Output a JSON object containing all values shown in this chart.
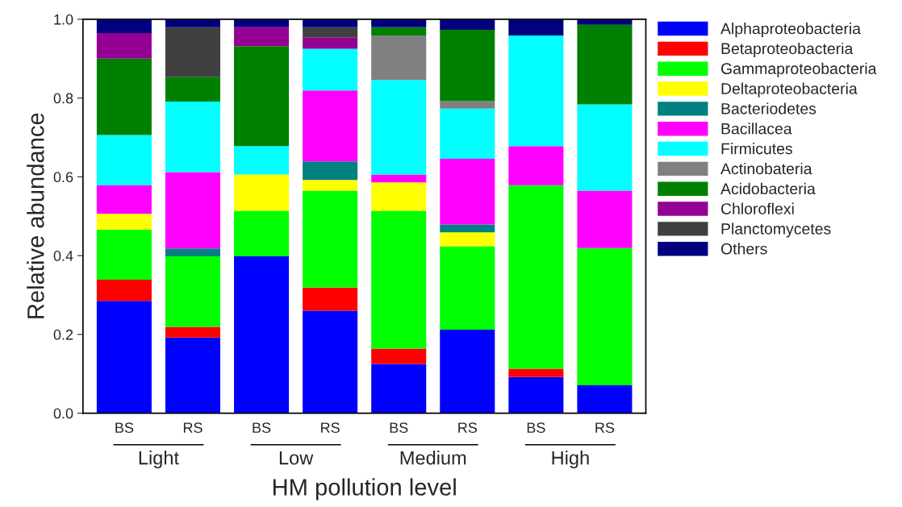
{
  "chart_data": {
    "type": "bar",
    "stacked": true,
    "xlabel": "HM pollution level",
    "ylabel": "Relative abundance",
    "categories": [
      "BS",
      "RS",
      "BS",
      "RS",
      "BS",
      "RS",
      "BS",
      "RS"
    ],
    "annotations": [
      "Light",
      "Low",
      "Medium",
      "High"
    ],
    "ylim": [
      0,
      1
    ],
    "yticks": [
      {
        "value": 0,
        "label": "0.0"
      },
      {
        "value": 0.2,
        "label": "0.2"
      },
      {
        "value": 0.4,
        "label": "0.4"
      },
      {
        "value": 0.6,
        "label": "0.6"
      },
      {
        "value": 0.8,
        "label": "0.8"
      },
      {
        "value": 1,
        "label": "1.0"
      }
    ],
    "grid": false,
    "legend": "right",
    "series": [
      {
        "name": "Alphaproteobacteria",
        "color": "#0000ff",
        "values": [
          0.285,
          0.192,
          0.398,
          0.26,
          0.125,
          0.212,
          0.092,
          0.071
        ]
      },
      {
        "name": "Betaproteobacteria",
        "color": "#ff0000",
        "values": [
          0.054,
          0.027,
          null,
          0.059,
          0.039,
          null,
          0.021,
          null
        ]
      },
      {
        "name": "Gammaproteobacteria",
        "color": "#00ff00",
        "values": [
          0.127,
          0.179,
          0.116,
          0.246,
          0.35,
          0.212,
          0.466,
          0.348
        ]
      },
      {
        "name": "Deltaproteobacteria",
        "color": "#ffff00",
        "values": [
          0.04,
          null,
          0.092,
          0.027,
          0.072,
          0.035,
          null,
          null
        ]
      },
      {
        "name": "Bacteriodetes",
        "color": "#008080",
        "values": [
          null,
          0.02,
          null,
          0.047,
          null,
          0.02,
          null,
          null
        ]
      },
      {
        "name": "Bacillacea",
        "color": "#ff00ff",
        "values": [
          0.073,
          0.194,
          null,
          0.18,
          0.02,
          0.167,
          0.099,
          0.146
        ]
      },
      {
        "name": "Firmicutes",
        "color": "#00ffff",
        "values": [
          0.127,
          0.179,
          0.072,
          0.106,
          0.24,
          0.127,
          0.281,
          0.219
        ]
      },
      {
        "name": "Actinobateria",
        "color": "#808080",
        "values": [
          null,
          null,
          null,
          null,
          0.113,
          0.019,
          null,
          null
        ]
      },
      {
        "name": "Acidobacteria",
        "color": "#008000",
        "values": [
          0.194,
          0.062,
          0.254,
          null,
          0.021,
          0.181,
          null,
          0.202
        ]
      },
      {
        "name": "Chloroflexi",
        "color": "#940094",
        "values": [
          0.065,
          null,
          0.048,
          0.028,
          null,
          null,
          null,
          null
        ]
      },
      {
        "name": "Planctomycetes",
        "color": "#404040",
        "values": [
          null,
          0.127,
          null,
          0.027,
          null,
          null,
          null,
          null
        ]
      },
      {
        "name": "Others",
        "color": "#000080",
        "values": [
          0.035,
          0.02,
          0.02,
          0.02,
          0.02,
          0.027,
          0.041,
          0.014
        ]
      }
    ]
  }
}
